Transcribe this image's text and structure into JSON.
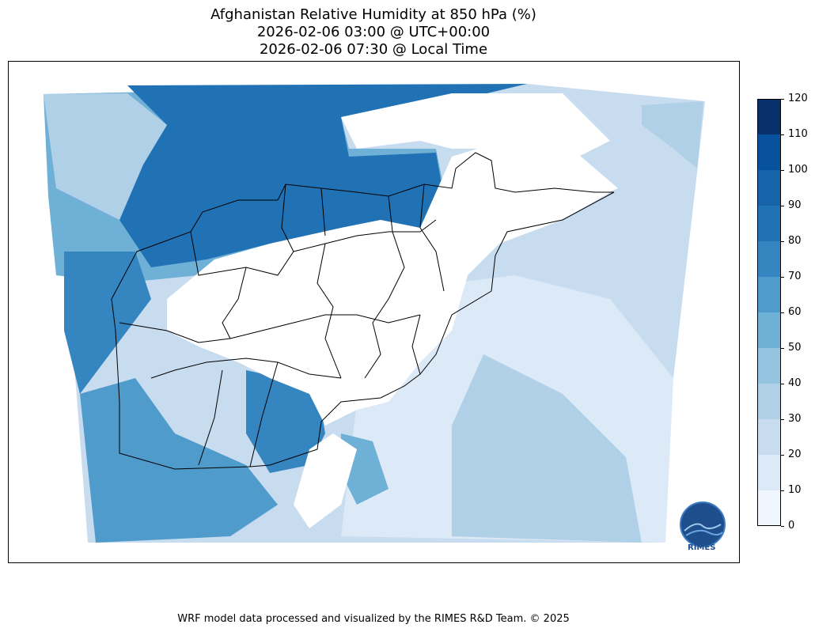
{
  "header": {
    "title_line1": "Afghanistan Relative Humidity at 850 hPa (%)",
    "title_line2": "2026-02-06 03:00 @ UTC+00:00",
    "title_line3": "2026-02-06 07:30 @ Local Time"
  },
  "colorbar": {
    "levels": [
      0,
      10,
      20,
      30,
      40,
      50,
      60,
      70,
      80,
      90,
      100,
      110,
      120
    ],
    "tick_labels": [
      "0",
      "10",
      "20",
      "30",
      "40",
      "50",
      "60",
      "70",
      "80",
      "90",
      "100",
      "110",
      "120"
    ],
    "colors": [
      "#f0f6fd",
      "#dce9f6",
      "#c8dcf0",
      "#b0d0e7",
      "#94c4df",
      "#6fb0d7",
      "#4f9bcb",
      "#3585c0",
      "#2171b5",
      "#1663aa",
      "#08519c",
      "#08306b"
    ]
  },
  "logo": {
    "text": "RIMES"
  },
  "footer": {
    "credit": "WRF model data processed and visualized by the RIMES R&D Team. © 2025"
  }
}
